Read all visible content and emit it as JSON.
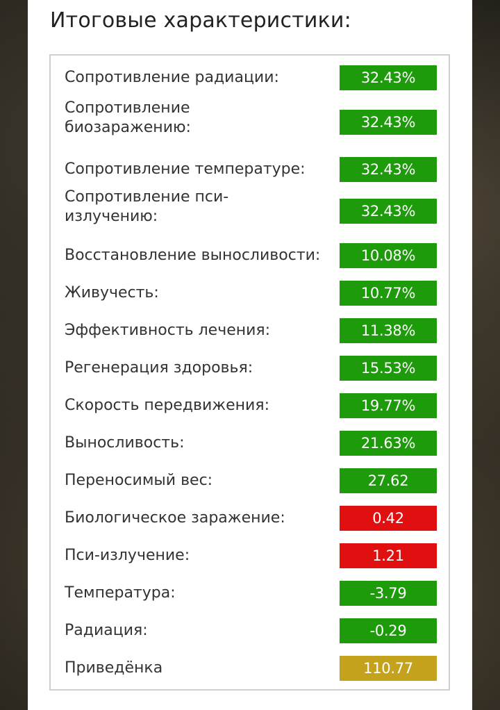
{
  "title": "Итоговые характеристики:",
  "colors": {
    "good": "#1e9b0a",
    "bad": "#e01010",
    "neutral": "#c4a21c"
  },
  "stats": [
    {
      "label": "Сопротивление радиации:",
      "value": "32.43%",
      "status": "good"
    },
    {
      "label": "Сопротивление биозаражению:",
      "value": "32.43%",
      "status": "good"
    },
    {
      "label": "Сопротивление температуре:",
      "value": "32.43%",
      "status": "good"
    },
    {
      "label": "Сопротивление пси-излучению:",
      "value": "32.43%",
      "status": "good"
    },
    {
      "label": "Восстановление выносливости:",
      "value": "10.08%",
      "status": "good"
    },
    {
      "label": "Живучесть:",
      "value": "10.77%",
      "status": "good"
    },
    {
      "label": "Эффективность лечения:",
      "value": "11.38%",
      "status": "good"
    },
    {
      "label": "Регенерация здоровья:",
      "value": "15.53%",
      "status": "good"
    },
    {
      "label": "Скорость передвижения:",
      "value": "19.77%",
      "status": "good"
    },
    {
      "label": "Выносливость:",
      "value": "21.63%",
      "status": "good"
    },
    {
      "label": "Переносимый вес:",
      "value": "27.62",
      "status": "good"
    },
    {
      "label": "Биологическое заражение:",
      "value": "0.42",
      "status": "bad"
    },
    {
      "label": "Пси-излучение:",
      "value": "1.21",
      "status": "bad"
    },
    {
      "label": "Температура:",
      "value": "-3.79",
      "status": "good"
    },
    {
      "label": "Радиация:",
      "value": "-0.29",
      "status": "good"
    },
    {
      "label": "Приведёнка",
      "value": "110.77",
      "status": "neutral"
    }
  ]
}
